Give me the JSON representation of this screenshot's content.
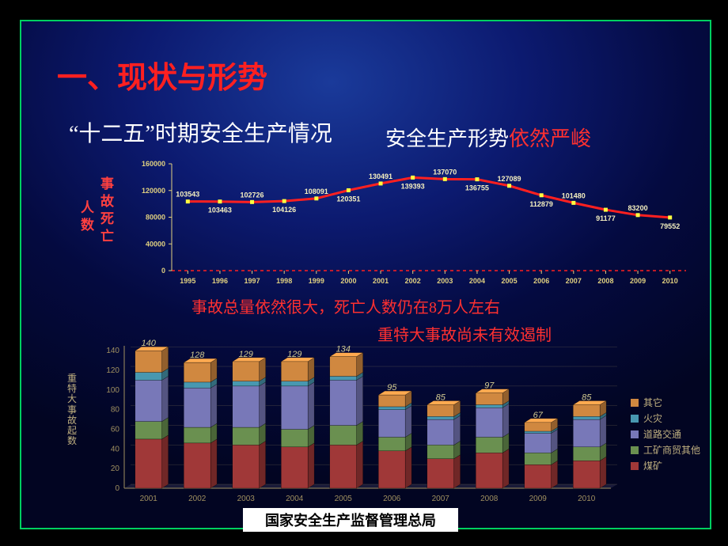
{
  "title": "一、现状与形势",
  "subtitle1": "“十二五”时期安全生产情况",
  "subtitle2_white": "安全生产形势",
  "subtitle2_red": "依然严峻",
  "chart1": {
    "type": "line",
    "ylabel_col1": "事故死亡",
    "ylabel_col2": "人数",
    "years": [
      "1995",
      "1996",
      "1997",
      "1998",
      "1999",
      "2000",
      "2001",
      "2002",
      "2003",
      "2004",
      "2005",
      "2006",
      "2007",
      "2008",
      "2009",
      "2010"
    ],
    "values": [
      103543,
      103463,
      102726,
      104126,
      108091,
      120351,
      130491,
      139393,
      137070,
      136755,
      127089,
      112879,
      101480,
      91177,
      83200,
      79552
    ],
    "yticks": [
      0,
      40000,
      80000,
      120000,
      160000
    ],
    "ylim": [
      0,
      160000
    ],
    "line_color": "#ff2020",
    "line_width": 3,
    "marker": "square",
    "marker_color": "#ffff40",
    "marker_size": 5,
    "zero_line_color": "#ff2020",
    "zero_line_dash": "4 4",
    "tick_color": "#e0d080",
    "label_fontsize": 9,
    "value_label_color": "#f5f0c0"
  },
  "note1": "事故总量依然很大，死亡人数仍在8万人左右",
  "note2": "重特大事故尚未有效遏制",
  "chart2": {
    "type": "stacked_bar_3d",
    "ylabel": "重特大事故起数",
    "years": [
      "2001",
      "2002",
      "2003",
      "2004",
      "2005",
      "2006",
      "2007",
      "2008",
      "2009",
      "2010"
    ],
    "totals": [
      140,
      128,
      129,
      129,
      134,
      95,
      85,
      97,
      67,
      85
    ],
    "series": [
      {
        "name": "煤矿",
        "color": "#a03838",
        "values": [
          50,
          46,
          44,
          42,
          44,
          38,
          30,
          36,
          24,
          28
        ]
      },
      {
        "name": "工矿商贸其他",
        "color": "#6a9050",
        "values": [
          18,
          16,
          18,
          18,
          20,
          14,
          14,
          16,
          12,
          14
        ]
      },
      {
        "name": "道路交通",
        "color": "#7878b8",
        "values": [
          42,
          40,
          42,
          44,
          46,
          28,
          26,
          30,
          20,
          28
        ]
      },
      {
        "name": "火灾",
        "color": "#4898b0",
        "values": [
          8,
          6,
          5,
          5,
          4,
          3,
          3,
          3,
          2,
          3
        ]
      },
      {
        "name": "其它",
        "color": "#d08840",
        "values": [
          22,
          20,
          20,
          20,
          20,
          12,
          12,
          12,
          9,
          12
        ]
      }
    ],
    "yticks": [
      0,
      20,
      40,
      60,
      80,
      100,
      120,
      140
    ],
    "ylim": [
      0,
      145
    ],
    "bar_width": 0.55,
    "axis_color": "#a09060",
    "floor_color": "#303050",
    "label_fontsize": 10,
    "value_label_color": "#d0c890"
  },
  "legend_order": [
    "其它",
    "火灾",
    "道路交通",
    "工矿商贸其他",
    "煤矿"
  ],
  "footer": "国家安全生产监督管理总局"
}
